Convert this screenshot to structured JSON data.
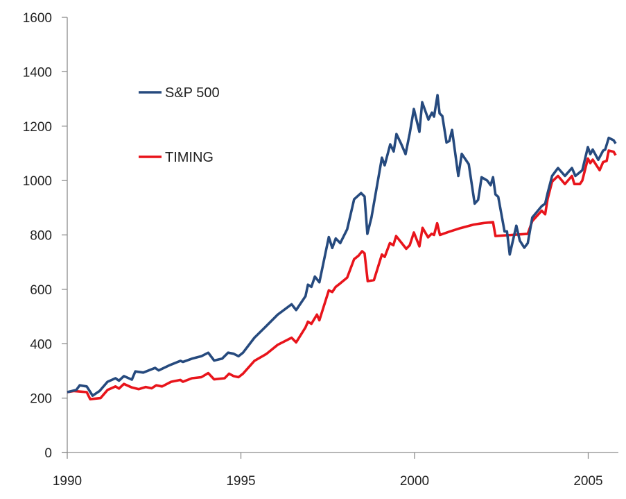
{
  "chart_data": {
    "type": "line",
    "title": "",
    "xlabel": "",
    "ylabel": "",
    "xlim": [
      1990,
      2005.85
    ],
    "ylim": [
      0,
      1600
    ],
    "xticks": [
      1990,
      1995,
      2000,
      2005
    ],
    "xtick_labels": [
      "1990",
      "1995",
      "2000",
      "2005"
    ],
    "yticks": [
      0,
      200,
      400,
      600,
      800,
      1000,
      1200,
      1400,
      1600
    ],
    "ytick_labels": [
      "0",
      "200",
      "400",
      "600",
      "800",
      "1000",
      "1200",
      "1400",
      "1600"
    ],
    "grid": false,
    "legend_position": "upper-left-inside",
    "series": [
      {
        "name": "S&P 500",
        "color": "#264a7e",
        "points": [
          [
            1990.0,
            222
          ],
          [
            1990.26,
            230
          ],
          [
            1990.36,
            247
          ],
          [
            1990.56,
            243
          ],
          [
            1990.73,
            209
          ],
          [
            1990.93,
            226
          ],
          [
            1991.16,
            260
          ],
          [
            1991.39,
            273
          ],
          [
            1991.49,
            264
          ],
          [
            1991.63,
            281
          ],
          [
            1991.86,
            268
          ],
          [
            1991.96,
            298
          ],
          [
            1992.19,
            294
          ],
          [
            1992.53,
            311
          ],
          [
            1992.63,
            302
          ],
          [
            1992.93,
            320
          ],
          [
            1993.26,
            337
          ],
          [
            1993.33,
            333
          ],
          [
            1993.59,
            345
          ],
          [
            1993.86,
            354
          ],
          [
            1994.06,
            367
          ],
          [
            1994.23,
            338
          ],
          [
            1994.46,
            345
          ],
          [
            1994.63,
            367
          ],
          [
            1994.79,
            363
          ],
          [
            1994.93,
            354
          ],
          [
            1995.06,
            367
          ],
          [
            1995.39,
            422
          ],
          [
            1995.73,
            465
          ],
          [
            1996.06,
            507
          ],
          [
            1996.46,
            545
          ],
          [
            1996.59,
            524
          ],
          [
            1996.86,
            575
          ],
          [
            1996.93,
            617
          ],
          [
            1997.03,
            609
          ],
          [
            1997.13,
            647
          ],
          [
            1997.26,
            626
          ],
          [
            1997.53,
            792
          ],
          [
            1997.63,
            752
          ],
          [
            1997.73,
            787
          ],
          [
            1997.86,
            770
          ],
          [
            1998.06,
            821
          ],
          [
            1998.26,
            931
          ],
          [
            1998.46,
            954
          ],
          [
            1998.56,
            941
          ],
          [
            1998.64,
            804
          ],
          [
            1998.76,
            865
          ],
          [
            1999.06,
            1084
          ],
          [
            1999.14,
            1056
          ],
          [
            1999.3,
            1133
          ],
          [
            1999.4,
            1107
          ],
          [
            1999.48,
            1171
          ],
          [
            1999.62,
            1133
          ],
          [
            1999.74,
            1097
          ],
          [
            1999.86,
            1173
          ],
          [
            1999.98,
            1263
          ],
          [
            2000.14,
            1179
          ],
          [
            2000.22,
            1288
          ],
          [
            2000.4,
            1224
          ],
          [
            2000.5,
            1250
          ],
          [
            2000.56,
            1235
          ],
          [
            2000.66,
            1314
          ],
          [
            2000.72,
            1247
          ],
          [
            2000.8,
            1237
          ],
          [
            2000.92,
            1140
          ],
          [
            2001.0,
            1145
          ],
          [
            2001.08,
            1186
          ],
          [
            2001.26,
            1017
          ],
          [
            2001.36,
            1098
          ],
          [
            2001.56,
            1060
          ],
          [
            2001.73,
            915
          ],
          [
            2001.83,
            929
          ],
          [
            2001.93,
            1012
          ],
          [
            2002.09,
            1000
          ],
          [
            2002.19,
            983
          ],
          [
            2002.26,
            1012
          ],
          [
            2002.33,
            949
          ],
          [
            2002.41,
            940
          ],
          [
            2002.59,
            813
          ],
          [
            2002.66,
            813
          ],
          [
            2002.74,
            728
          ],
          [
            2002.93,
            834
          ],
          [
            2003.03,
            779
          ],
          [
            2003.16,
            753
          ],
          [
            2003.26,
            770
          ],
          [
            2003.39,
            864
          ],
          [
            2003.66,
            906
          ],
          [
            2003.76,
            915
          ],
          [
            2003.83,
            953
          ],
          [
            2003.96,
            1017
          ],
          [
            2004.13,
            1046
          ],
          [
            2004.33,
            1017
          ],
          [
            2004.53,
            1046
          ],
          [
            2004.63,
            1017
          ],
          [
            2004.83,
            1038
          ],
          [
            2004.99,
            1123
          ],
          [
            2005.06,
            1097
          ],
          [
            2005.13,
            1114
          ],
          [
            2005.29,
            1076
          ],
          [
            2005.43,
            1110
          ],
          [
            2005.49,
            1114
          ],
          [
            2005.59,
            1157
          ],
          [
            2005.73,
            1148
          ],
          [
            2005.79,
            1136
          ]
        ]
      },
      {
        "name": "TIMING",
        "color": "#e8141b",
        "points": [
          [
            1990.0,
            222
          ],
          [
            1990.2,
            226
          ],
          [
            1990.56,
            222
          ],
          [
            1990.66,
            196
          ],
          [
            1990.96,
            200
          ],
          [
            1991.16,
            230
          ],
          [
            1991.39,
            243
          ],
          [
            1991.49,
            235
          ],
          [
            1991.63,
            252
          ],
          [
            1991.86,
            239
          ],
          [
            1992.06,
            233
          ],
          [
            1992.26,
            241
          ],
          [
            1992.43,
            236
          ],
          [
            1992.56,
            247
          ],
          [
            1992.73,
            243
          ],
          [
            1992.99,
            260
          ],
          [
            1993.26,
            267
          ],
          [
            1993.33,
            260
          ],
          [
            1993.59,
            273
          ],
          [
            1993.86,
            277
          ],
          [
            1994.06,
            292
          ],
          [
            1994.23,
            269
          ],
          [
            1994.53,
            273
          ],
          [
            1994.66,
            290
          ],
          [
            1994.79,
            281
          ],
          [
            1994.93,
            277
          ],
          [
            1995.06,
            290
          ],
          [
            1995.39,
            337
          ],
          [
            1995.73,
            362
          ],
          [
            1996.06,
            396
          ],
          [
            1996.46,
            422
          ],
          [
            1996.59,
            405
          ],
          [
            1996.86,
            460
          ],
          [
            1996.93,
            481
          ],
          [
            1997.03,
            473
          ],
          [
            1997.19,
            507
          ],
          [
            1997.26,
            486
          ],
          [
            1997.53,
            596
          ],
          [
            1997.63,
            590
          ],
          [
            1997.73,
            609
          ],
          [
            1997.86,
            622
          ],
          [
            1998.06,
            643
          ],
          [
            1998.26,
            711
          ],
          [
            1998.39,
            724
          ],
          [
            1998.49,
            740
          ],
          [
            1998.56,
            732
          ],
          [
            1998.65,
            630
          ],
          [
            1998.83,
            634
          ],
          [
            1999.06,
            728
          ],
          [
            1999.14,
            719
          ],
          [
            1999.29,
            770
          ],
          [
            1999.39,
            762
          ],
          [
            1999.47,
            796
          ],
          [
            1999.63,
            770
          ],
          [
            1999.76,
            749
          ],
          [
            1999.86,
            762
          ],
          [
            1999.98,
            809
          ],
          [
            2000.14,
            758
          ],
          [
            2000.23,
            826
          ],
          [
            2000.39,
            791
          ],
          [
            2000.49,
            804
          ],
          [
            2000.56,
            800
          ],
          [
            2000.65,
            843
          ],
          [
            2000.73,
            800
          ],
          [
            2001.0,
            812
          ],
          [
            2001.32,
            825
          ],
          [
            2001.7,
            838
          ],
          [
            2002.0,
            844
          ],
          [
            2002.26,
            847
          ],
          [
            2002.33,
            796
          ],
          [
            2002.8,
            800
          ],
          [
            2003.26,
            804
          ],
          [
            2003.39,
            851
          ],
          [
            2003.66,
            889
          ],
          [
            2003.76,
            876
          ],
          [
            2003.83,
            932
          ],
          [
            2003.96,
            996
          ],
          [
            2004.13,
            1017
          ],
          [
            2004.33,
            987
          ],
          [
            2004.53,
            1017
          ],
          [
            2004.6,
            987
          ],
          [
            2004.76,
            987
          ],
          [
            2004.83,
            1000
          ],
          [
            2004.99,
            1081
          ],
          [
            2005.06,
            1064
          ],
          [
            2005.13,
            1077
          ],
          [
            2005.33,
            1038
          ],
          [
            2005.43,
            1068
          ],
          [
            2005.53,
            1072
          ],
          [
            2005.59,
            1110
          ],
          [
            2005.73,
            1106
          ],
          [
            2005.79,
            1093
          ]
        ]
      }
    ]
  }
}
